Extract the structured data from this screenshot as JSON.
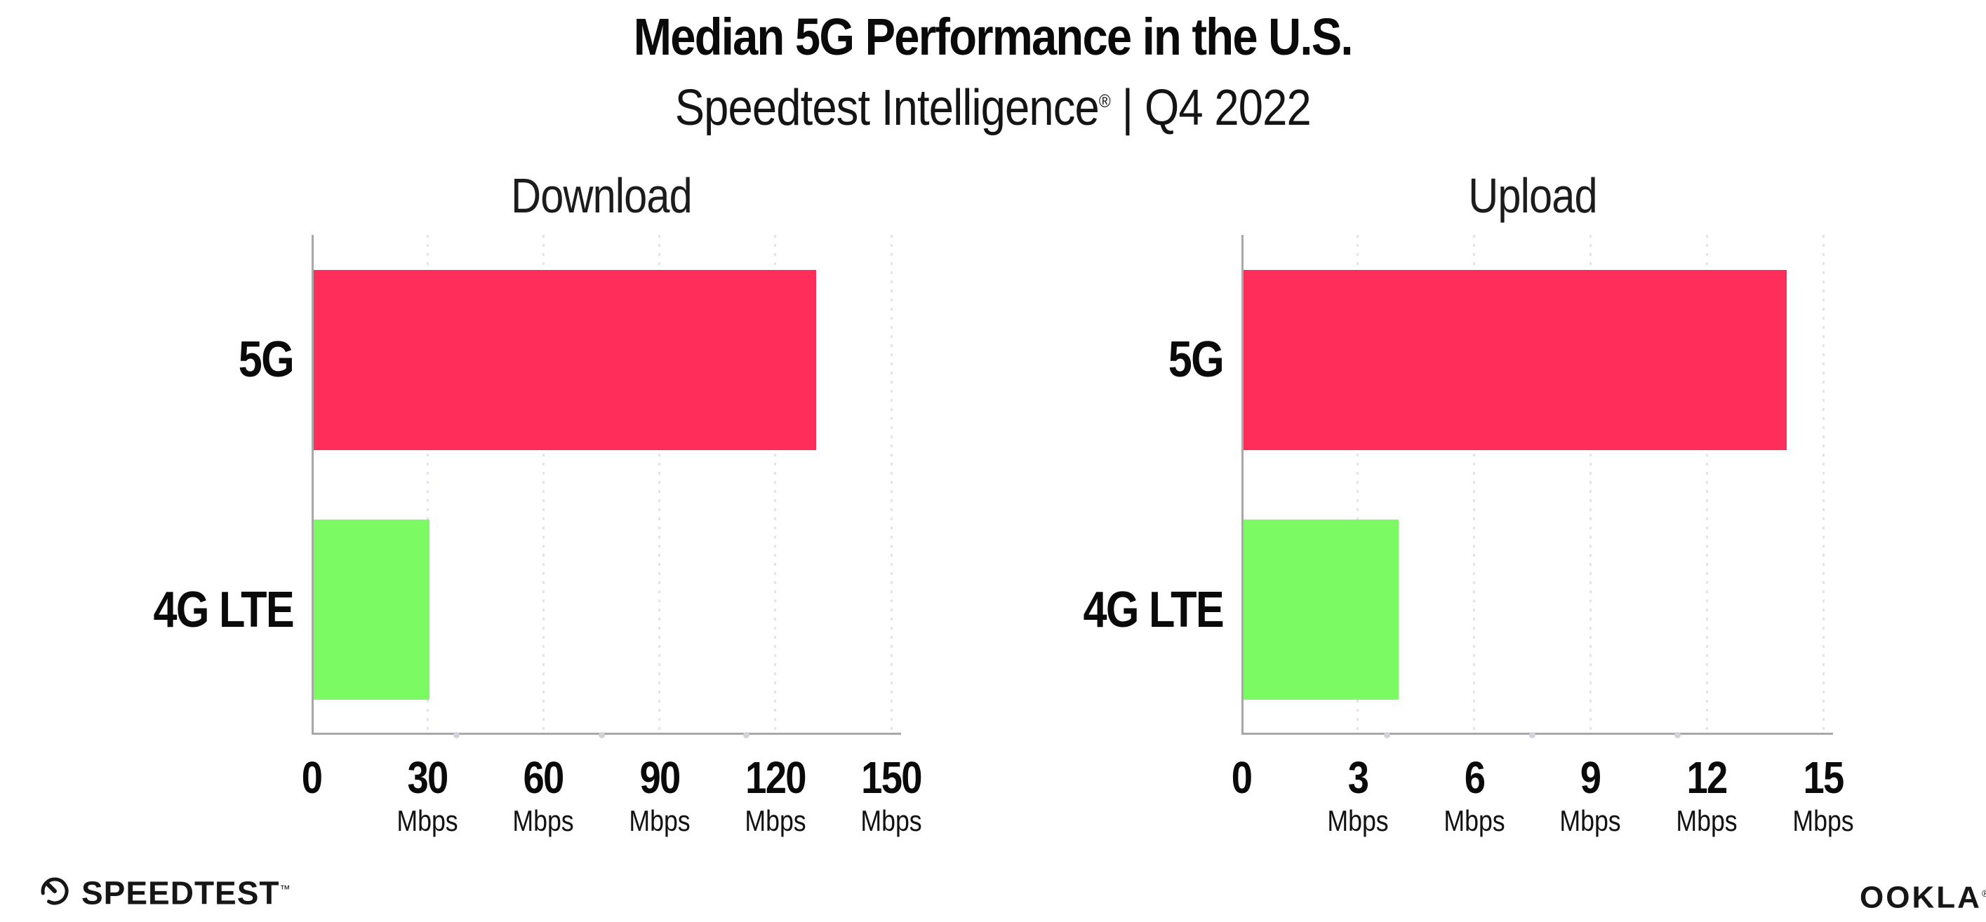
{
  "header": {
    "title": "Median 5G Performance in the U.S.",
    "subtitle_brand": "Speedtest Intelligence",
    "subtitle_registered": "®",
    "subtitle_separator": "|",
    "subtitle_period": "Q4 2022"
  },
  "chart_data": [
    {
      "type": "bar",
      "orientation": "horizontal",
      "title": "Download",
      "categories": [
        "5G",
        "4G LTE"
      ],
      "values": [
        130,
        30
      ],
      "unit": "Mbps",
      "xlim": [
        0,
        150
      ],
      "xticks": [
        0,
        30,
        60,
        90,
        120,
        150
      ],
      "bar_colors": [
        "#FF2D5A",
        "#7CFA63"
      ],
      "grid": "dotted-vertical",
      "legend": "none"
    },
    {
      "type": "bar",
      "orientation": "horizontal",
      "title": "Upload",
      "categories": [
        "5G",
        "4G LTE"
      ],
      "values": [
        14,
        4
      ],
      "unit": "Mbps",
      "xlim": [
        0,
        15
      ],
      "xticks": [
        0,
        3,
        6,
        9,
        12,
        15
      ],
      "bar_colors": [
        "#FF2D5A",
        "#7CFA63"
      ],
      "grid": "dotted-vertical",
      "legend": "none"
    }
  ],
  "footer": {
    "speedtest_label": "SPEEDTEST",
    "speedtest_trademark": "™",
    "ookla_label": "OOKLA",
    "ookla_registered": "®"
  }
}
